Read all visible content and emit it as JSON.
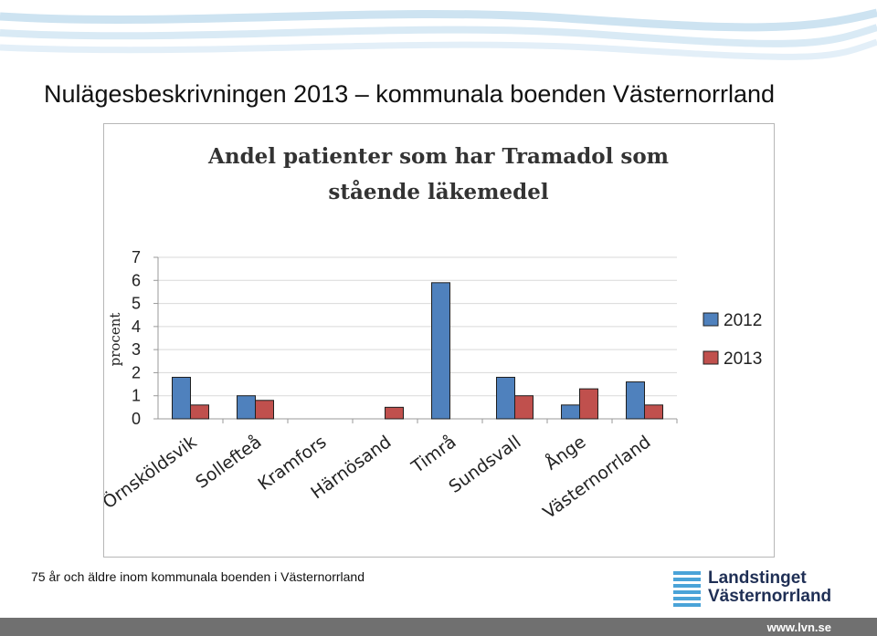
{
  "slide": {
    "title": "Nulägesbeskrivningen 2013 – kommunala boenden Västernorrland",
    "footnote": "75 år och äldre inom kommunala boenden i Västernorrland"
  },
  "logo": {
    "line1": "Landstinget",
    "line2": "Västernorrland"
  },
  "footer": {
    "url": "www.lvn.se"
  },
  "colors": {
    "series_2012": "#4f81bd",
    "series_2013": "#c0504d",
    "bar_outline": "#1f1f1f",
    "grid": "#d9d9d9",
    "waves": "#cde3f1"
  },
  "chart_data": {
    "type": "bar",
    "title_lines": [
      "Andel patienter som har Tramadol som",
      "stående läkemedel"
    ],
    "ylabel": "procent",
    "xlabel": "",
    "ylim": [
      0,
      7
    ],
    "yticks": [
      0,
      1,
      2,
      3,
      4,
      5,
      6,
      7
    ],
    "grid": true,
    "legend": "right",
    "categories": [
      "Örnsköldsvik",
      "Sollefteå",
      "Kramfors",
      "Härnösand",
      "Timrå",
      "Sundsvall",
      "Ånge",
      "Västernorrland"
    ],
    "series": [
      {
        "name": "2012",
        "values": [
          1.8,
          1.0,
          0,
          0,
          5.9,
          1.8,
          0.6,
          1.6
        ]
      },
      {
        "name": "2013",
        "values": [
          0.6,
          0.8,
          0,
          0.5,
          0,
          1.0,
          1.3,
          0.6
        ]
      }
    ]
  }
}
